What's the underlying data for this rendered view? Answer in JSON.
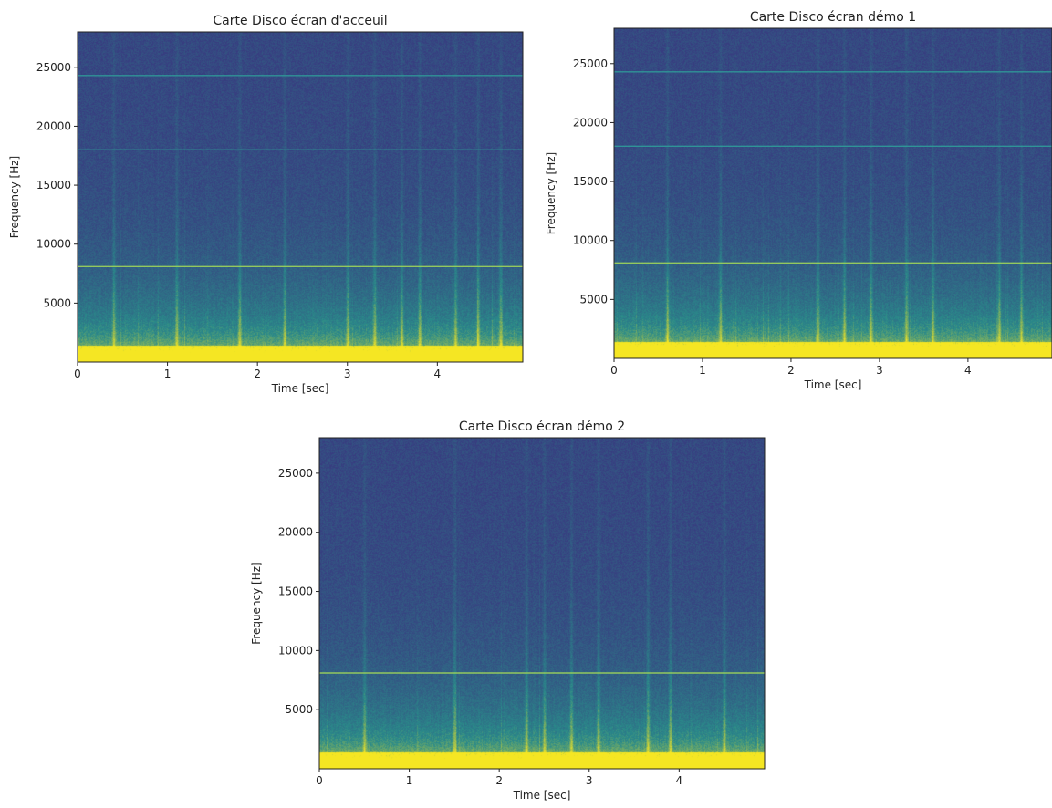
{
  "chart_data": [
    {
      "type": "heatmap",
      "title": "Carte Disco écran d'acceuil",
      "xlabel": "Time [sec]",
      "ylabel": "Frequency [Hz]",
      "xlim": [
        0,
        4.95
      ],
      "ylim": [
        0,
        28000
      ],
      "xticks": [
        0,
        1,
        2,
        3,
        4
      ],
      "yticks": [
        5000,
        10000,
        15000,
        20000,
        25000
      ],
      "colormap": "viridis",
      "colors": {
        "low": "#3b2a7e",
        "mid": "#2a8a8a",
        "high": "#f5e623"
      },
      "grid": false,
      "tone_lines_hz": [
        8100,
        18000,
        24300
      ],
      "energy_bursts_sec": [
        0.4,
        1.1,
        1.8,
        2.3,
        3.0,
        3.3,
        3.6,
        3.8,
        4.2,
        4.45,
        4.7
      ]
    },
    {
      "type": "heatmap",
      "title": "Carte Disco écran démo 1",
      "xlabel": "Time [sec]",
      "ylabel": "Frequency [Hz]",
      "xlim": [
        0,
        4.95
      ],
      "ylim": [
        0,
        28000
      ],
      "xticks": [
        0,
        1,
        2,
        3,
        4
      ],
      "yticks": [
        5000,
        10000,
        15000,
        20000,
        25000
      ],
      "colormap": "viridis",
      "colors": {
        "low": "#3b2a7e",
        "mid": "#2a8a8a",
        "high": "#f5e623"
      },
      "grid": false,
      "tone_lines_hz": [
        8100,
        18000,
        24300
      ],
      "energy_bursts_sec": [
        0.6,
        1.2,
        2.3,
        2.6,
        2.9,
        3.3,
        3.6,
        4.35,
        4.6
      ]
    },
    {
      "type": "heatmap",
      "title": "Carte Disco écran démo 2",
      "xlabel": "Time [sec]",
      "ylabel": "Frequency [Hz]",
      "xlim": [
        0,
        4.95
      ],
      "ylim": [
        0,
        28000
      ],
      "xticks": [
        0,
        1,
        2,
        3,
        4
      ],
      "yticks": [
        5000,
        10000,
        15000,
        20000,
        25000
      ],
      "colormap": "viridis",
      "colors": {
        "low": "#3b2a7e",
        "mid": "#2a8a8a",
        "high": "#f5e623"
      },
      "grid": false,
      "tone_lines_hz": [
        8100
      ],
      "energy_bursts_sec": [
        0.5,
        1.5,
        2.3,
        2.5,
        2.8,
        3.1,
        3.65,
        3.9,
        4.5
      ]
    }
  ]
}
